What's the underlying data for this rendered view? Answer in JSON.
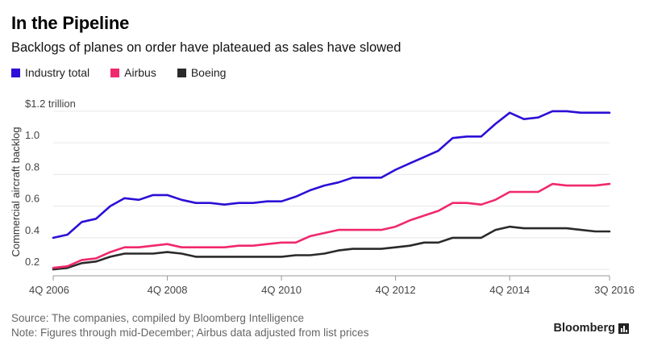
{
  "title": "In the Pipeline",
  "subtitle": "Backlogs of planes on order have plateaued as sales have slowed",
  "footer": {
    "source": "Source: The companies, compiled by Bloomberg Intelligence",
    "note": "Note: Figures through mid-December; Airbus data adjusted from list prices"
  },
  "brand": "Bloomberg",
  "colors": {
    "industry": "#2b0fd6",
    "airbus": "#f0286e",
    "boeing": "#2a2a2a"
  },
  "chart_data": {
    "type": "line",
    "ylabel": "Commercial aircraft backlog",
    "ylim": [
      0.16,
      1.24
    ],
    "yticks": [
      {
        "value": 1.2,
        "label": "$1.2 trillion"
      },
      {
        "value": 1.0,
        "label": "1.0"
      },
      {
        "value": 0.8,
        "label": "0.8"
      },
      {
        "value": 0.6,
        "label": "0.6"
      },
      {
        "value": 0.4,
        "label": "0.4"
      },
      {
        "value": 0.2,
        "label": "0.2"
      }
    ],
    "xticks": [
      "4Q 2006",
      "4Q 2008",
      "4Q 2010",
      "4Q 2012",
      "4Q 2014",
      "3Q 2016"
    ],
    "x": [
      "4Q 2006",
      "1Q 2007",
      "2Q 2007",
      "3Q 2007",
      "4Q 2007",
      "1Q 2008",
      "2Q 2008",
      "3Q 2008",
      "4Q 2008",
      "1Q 2009",
      "2Q 2009",
      "3Q 2009",
      "4Q 2009",
      "1Q 2010",
      "2Q 2010",
      "3Q 2010",
      "4Q 2010",
      "1Q 2011",
      "2Q 2011",
      "3Q 2011",
      "4Q 2011",
      "1Q 2012",
      "2Q 2012",
      "3Q 2012",
      "4Q 2012",
      "1Q 2013",
      "2Q 2013",
      "3Q 2013",
      "4Q 2013",
      "1Q 2014",
      "2Q 2014",
      "3Q 2014",
      "4Q 2014",
      "1Q 2015",
      "2Q 2015",
      "3Q 2015",
      "4Q 2015",
      "1Q 2016",
      "2Q 2016",
      "3Q 2016"
    ],
    "series": [
      {
        "name": "Industry total",
        "color": "#2b0fd6",
        "values": [
          0.4,
          0.42,
          0.5,
          0.52,
          0.6,
          0.65,
          0.64,
          0.67,
          0.67,
          0.64,
          0.62,
          0.62,
          0.61,
          0.62,
          0.62,
          0.63,
          0.63,
          0.66,
          0.7,
          0.73,
          0.75,
          0.78,
          0.78,
          0.78,
          0.83,
          0.87,
          0.91,
          0.95,
          1.03,
          1.04,
          1.04,
          1.12,
          1.19,
          1.15,
          1.16,
          1.2,
          1.2,
          1.19,
          1.19,
          1.19
        ]
      },
      {
        "name": "Airbus",
        "color": "#f0286e",
        "values": [
          0.21,
          0.22,
          0.26,
          0.27,
          0.31,
          0.34,
          0.34,
          0.35,
          0.36,
          0.34,
          0.34,
          0.34,
          0.34,
          0.35,
          0.35,
          0.36,
          0.37,
          0.37,
          0.41,
          0.43,
          0.45,
          0.45,
          0.45,
          0.45,
          0.47,
          0.51,
          0.54,
          0.57,
          0.62,
          0.62,
          0.61,
          0.64,
          0.69,
          0.69,
          0.69,
          0.74,
          0.73,
          0.73,
          0.73,
          0.74
        ]
      },
      {
        "name": "Boeing",
        "color": "#2a2a2a",
        "values": [
          0.2,
          0.21,
          0.24,
          0.25,
          0.28,
          0.3,
          0.3,
          0.3,
          0.31,
          0.3,
          0.28,
          0.28,
          0.28,
          0.28,
          0.28,
          0.28,
          0.28,
          0.29,
          0.29,
          0.3,
          0.32,
          0.33,
          0.33,
          0.33,
          0.34,
          0.35,
          0.37,
          0.37,
          0.4,
          0.4,
          0.4,
          0.45,
          0.47,
          0.46,
          0.46,
          0.46,
          0.46,
          0.45,
          0.44,
          0.44
        ]
      }
    ],
    "grid": true,
    "legend_position": "top-left"
  }
}
